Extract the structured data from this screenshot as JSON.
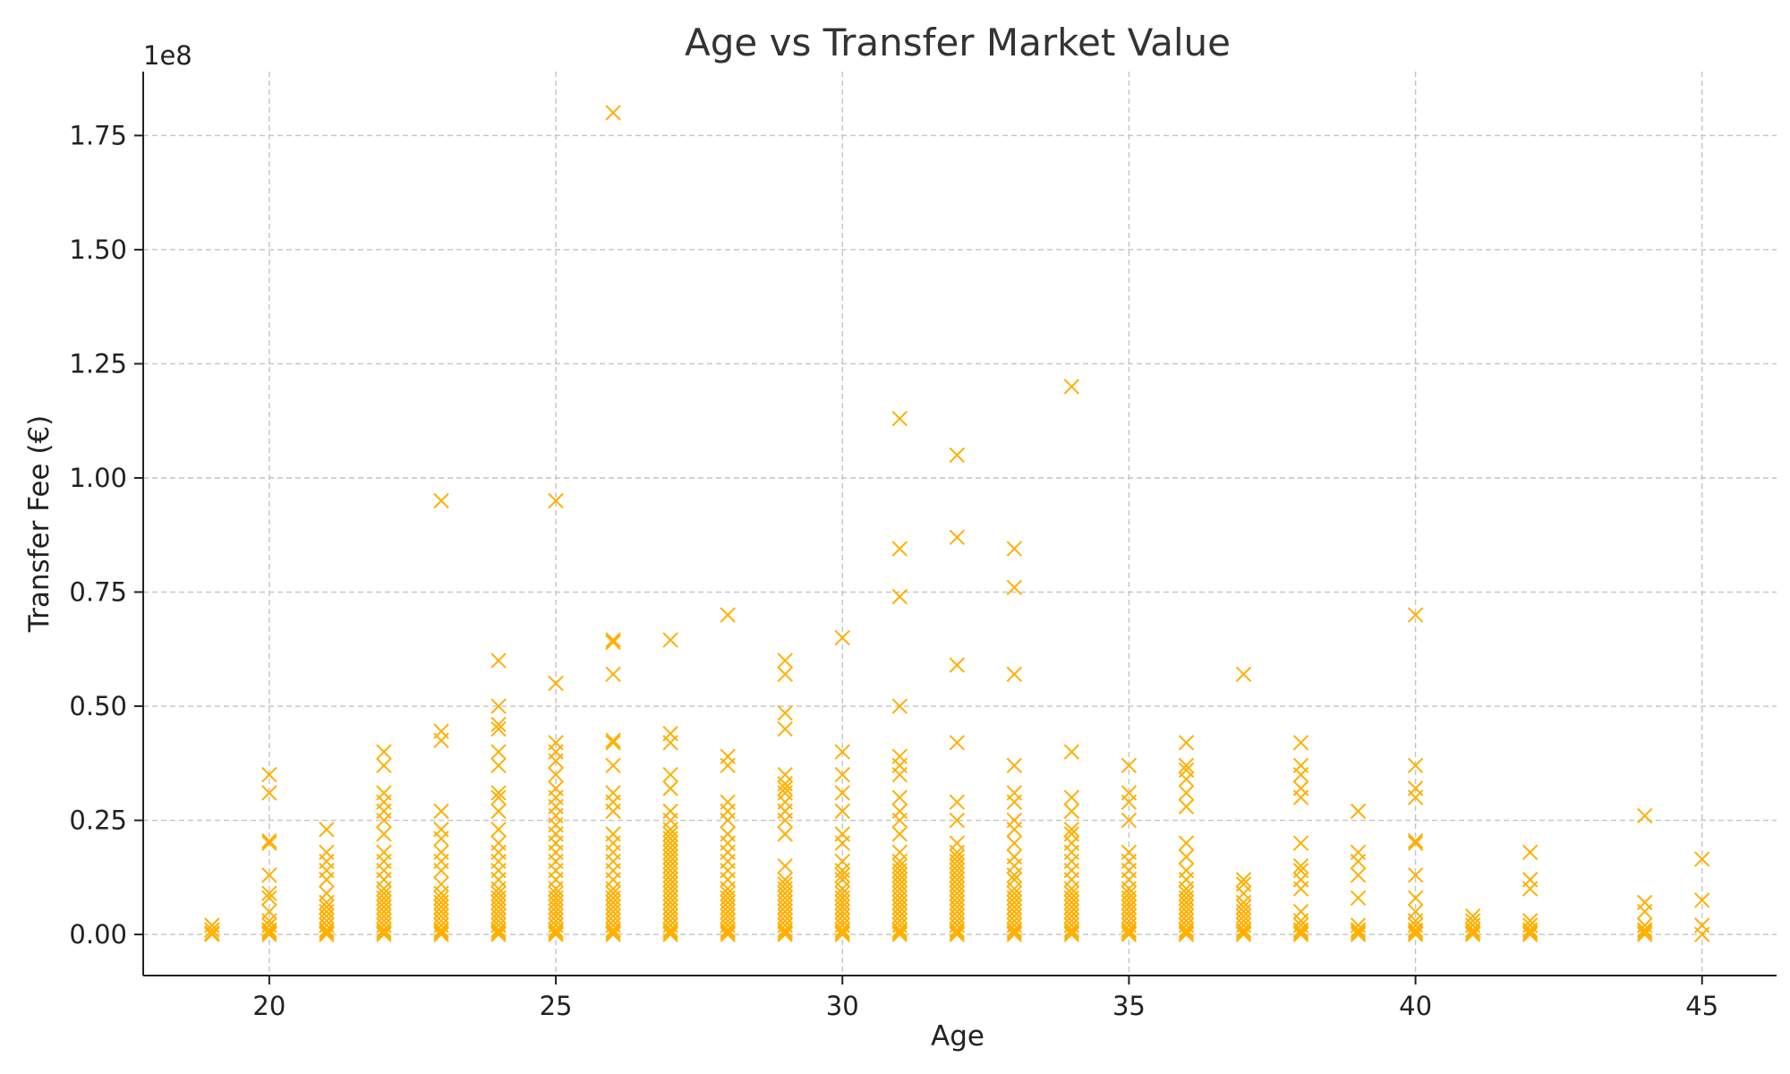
{
  "chart_data": {
    "type": "scatter",
    "title": "Age vs Transfer Market Value",
    "xlabel": "Age",
    "ylabel": "Transfer Fee (€)",
    "y_offset_label": "1e8",
    "xlim": [
      17.8,
      46.3
    ],
    "ylim": [
      -9000000,
      189000000
    ],
    "y_scale_factor": 100000000,
    "x_ticks": [
      20,
      25,
      30,
      35,
      40,
      45
    ],
    "x_tick_labels": [
      "20",
      "25",
      "30",
      "35",
      "40",
      "45"
    ],
    "y_ticks": [
      0,
      25000000,
      50000000,
      75000000,
      100000000,
      125000000,
      150000000,
      175000000
    ],
    "y_tick_labels": [
      "0.00",
      "0.25",
      "0.50",
      "0.75",
      "1.00",
      "1.25",
      "1.50",
      "1.75"
    ],
    "grid": true,
    "marker": "x",
    "marker_color": "#FFB000",
    "series": [
      {
        "points_by_age": {
          "19": [
            0,
            300000,
            1000000,
            2000000
          ],
          "20": [
            0,
            500000,
            1000000,
            2000000,
            3000000,
            5000000,
            8000000,
            9000000,
            13000000,
            20000000,
            20500000,
            31000000,
            35000000
          ],
          "21": [
            0,
            500000,
            1000000,
            2000000,
            3000000,
            4000000,
            5000000,
            6000000,
            7000000,
            9000000,
            12000000,
            14000000,
            16000000,
            18000000,
            23000000
          ],
          "22": [
            0,
            500000,
            1000000,
            2000000,
            3000000,
            4000000,
            5000000,
            6000000,
            7000000,
            8000000,
            9000000,
            10000000,
            12000000,
            14000000,
            16000000,
            18000000,
            22000000,
            25000000,
            27000000,
            29000000,
            31000000,
            37000000,
            40000000
          ],
          "23": [
            0,
            500000,
            1000000,
            2000000,
            3000000,
            4000000,
            5000000,
            6000000,
            7000000,
            8000000,
            9000000,
            11000000,
            14000000,
            16000000,
            18000000,
            21000000,
            23000000,
            27000000,
            42500000,
            44500000,
            95000000
          ],
          "24": [
            0,
            500000,
            1000000,
            2000000,
            3000000,
            4000000,
            5000000,
            6000000,
            7000000,
            8000000,
            9000000,
            10000000,
            12000000,
            14000000,
            16000000,
            18000000,
            20000000,
            23000000,
            27000000,
            30000000,
            31000000,
            37000000,
            40000000,
            45000000,
            46000000,
            50000000,
            60000000
          ],
          "25": [
            0,
            500000,
            1000000,
            2000000,
            3000000,
            4000000,
            5000000,
            6000000,
            7000000,
            8000000,
            9000000,
            10000000,
            12000000,
            14000000,
            16000000,
            18000000,
            20000000,
            22000000,
            24000000,
            26000000,
            28000000,
            30000000,
            32000000,
            35000000,
            38000000,
            40000000,
            42000000,
            55000000,
            95000000
          ],
          "26": [
            0,
            500000,
            1000000,
            2000000,
            3000000,
            4000000,
            5000000,
            6000000,
            7000000,
            8000000,
            9000000,
            10000000,
            12000000,
            14000000,
            16000000,
            18000000,
            20000000,
            22000000,
            27000000,
            29000000,
            31000000,
            37000000,
            42000000,
            42500000,
            57000000,
            64000000,
            64500000,
            180000000
          ],
          "27": [
            0,
            500000,
            1000000,
            2000000,
            3000000,
            4000000,
            5000000,
            6000000,
            7000000,
            8000000,
            9000000,
            10000000,
            11000000,
            12000000,
            13000000,
            14000000,
            15000000,
            16000000,
            17000000,
            18000000,
            19000000,
            20000000,
            21000000,
            22000000,
            23000000,
            25000000,
            27000000,
            32000000,
            35000000,
            42000000,
            44000000,
            64500000
          ],
          "28": [
            0,
            500000,
            1000000,
            2000000,
            3000000,
            4000000,
            5000000,
            6000000,
            7000000,
            8000000,
            9000000,
            10000000,
            12000000,
            14000000,
            16000000,
            18000000,
            20000000,
            22000000,
            25000000,
            27000000,
            29000000,
            37000000,
            39000000,
            70000000
          ],
          "29": [
            0,
            500000,
            1000000,
            2000000,
            3000000,
            4000000,
            5000000,
            6000000,
            7000000,
            8000000,
            9000000,
            10000000,
            11000000,
            12000000,
            15000000,
            22000000,
            25000000,
            27000000,
            29000000,
            31000000,
            32000000,
            33000000,
            35000000,
            45000000,
            48500000,
            57000000,
            60000000
          ],
          "30": [
            0,
            500000,
            1000000,
            2000000,
            3000000,
            4000000,
            5000000,
            6000000,
            7000000,
            8000000,
            9000000,
            10000000,
            12000000,
            13000000,
            14000000,
            16000000,
            20000000,
            22000000,
            27000000,
            31000000,
            35000000,
            40000000,
            65000000
          ],
          "31": [
            0,
            500000,
            1000000,
            2000000,
            3000000,
            4000000,
            5000000,
            6000000,
            7000000,
            8000000,
            9000000,
            10000000,
            11000000,
            12000000,
            13000000,
            14000000,
            15000000,
            16000000,
            18000000,
            22000000,
            25000000,
            27000000,
            30000000,
            35000000,
            37000000,
            39000000,
            50000000,
            74000000,
            84500000,
            113000000
          ],
          "32": [
            0,
            500000,
            1000000,
            2000000,
            3000000,
            4000000,
            5000000,
            6000000,
            7000000,
            8000000,
            9000000,
            10000000,
            11000000,
            12000000,
            13000000,
            14000000,
            15000000,
            16000000,
            17000000,
            18000000,
            20000000,
            25000000,
            29000000,
            42000000,
            59000000,
            87000000,
            105000000
          ],
          "33": [
            0,
            500000,
            1000000,
            2000000,
            3000000,
            4000000,
            5000000,
            6000000,
            7000000,
            8000000,
            9000000,
            10000000,
            12000000,
            13000000,
            15000000,
            17000000,
            20000000,
            23000000,
            25000000,
            29000000,
            31000000,
            37000000,
            57000000,
            76000000,
            84500000
          ],
          "34": [
            0,
            500000,
            1000000,
            2000000,
            3000000,
            4000000,
            5000000,
            6000000,
            7000000,
            8000000,
            9000000,
            10000000,
            12000000,
            14000000,
            16000000,
            18000000,
            20000000,
            22000000,
            23000000,
            27000000,
            30000000,
            40000000,
            120000000
          ],
          "35": [
            0,
            500000,
            1000000,
            2000000,
            3000000,
            4000000,
            5000000,
            6000000,
            7000000,
            8000000,
            9000000,
            10000000,
            12000000,
            14000000,
            16000000,
            18000000,
            25000000,
            29000000,
            31000000,
            37000000
          ],
          "36": [
            0,
            500000,
            1000000,
            2000000,
            3000000,
            4000000,
            5000000,
            6000000,
            7000000,
            8000000,
            9000000,
            10000000,
            12000000,
            14000000,
            17000000,
            20000000,
            28000000,
            31000000,
            34000000,
            36000000,
            37000000,
            42000000
          ],
          "37": [
            0,
            500000,
            1000000,
            2000000,
            3000000,
            4000000,
            5000000,
            6000000,
            7000000,
            9000000,
            11000000,
            12000000,
            57000000
          ],
          "38": [
            0,
            500000,
            1000000,
            2000000,
            3000000,
            5000000,
            10000000,
            12000000,
            14000000,
            15000000,
            20000000,
            30000000,
            32000000,
            35000000,
            37000000,
            42000000
          ],
          "39": [
            0,
            500000,
            1000000,
            2000000,
            8000000,
            13000000,
            16000000,
            18000000,
            27000000
          ],
          "40": [
            0,
            500000,
            1000000,
            2000000,
            3000000,
            5000000,
            8000000,
            13000000,
            20000000,
            20500000,
            30000000,
            32000000,
            37000000,
            70000000
          ],
          "41": [
            0,
            500000,
            1000000,
            2000000,
            3000000,
            4000000
          ],
          "42": [
            0,
            500000,
            1000000,
            2000000,
            3000000,
            10000000,
            12000000,
            18000000
          ],
          "44": [
            0,
            500000,
            1000000,
            2000000,
            5000000,
            7000000,
            26000000
          ],
          "45": [
            0,
            2000000,
            7500000,
            16500000
          ]
        }
      }
    ]
  }
}
